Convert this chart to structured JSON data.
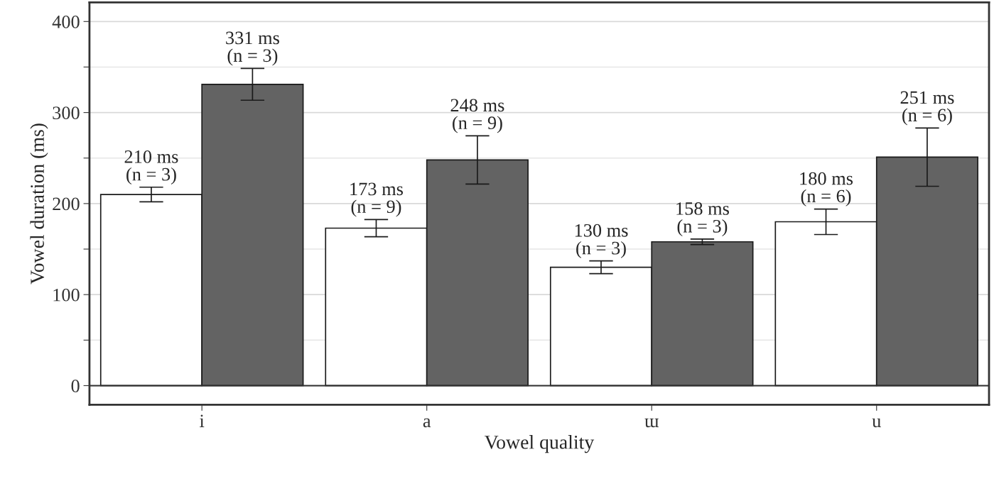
{
  "chart_data": {
    "type": "bar",
    "xlabel": "Vowel quality",
    "ylabel": "Vowel duration (ms)",
    "categories": [
      "i",
      "a",
      "ɯ",
      "u"
    ],
    "series": [
      {
        "color": "#ffffff",
        "values": [
          210,
          173,
          130,
          180
        ],
        "errors": [
          8,
          9.5,
          7,
          14
        ],
        "value_labels": [
          "210 ms\n(n = 3)",
          "173 ms\n(n = 9)",
          "130 ms\n(n = 3)",
          "180 ms\n(n = 6)"
        ]
      },
      {
        "color": "#636363",
        "values": [
          331,
          248,
          158,
          251
        ],
        "errors": [
          17.5,
          26.5,
          3,
          32
        ],
        "value_labels": [
          "331 ms\n(n = 3)",
          "248 ms\n(n = 9)",
          "158 ms\n(n = 3)",
          "251 ms\n(n = 6)"
        ]
      }
    ],
    "ylim": [
      -21,
      421
    ],
    "yticks": [
      0,
      {
        "value": 50,
        "label": null
      },
      100,
      {
        "value": 150,
        "label": null
      },
      200,
      {
        "value": 250,
        "label": null
      },
      300,
      {
        "value": 350,
        "label": null
      },
      400
    ],
    "ref_lines": [
      {
        "axis": "y",
        "value": 0,
        "color": "#333333"
      }
    ],
    "grid": "y",
    "legend": false
  }
}
